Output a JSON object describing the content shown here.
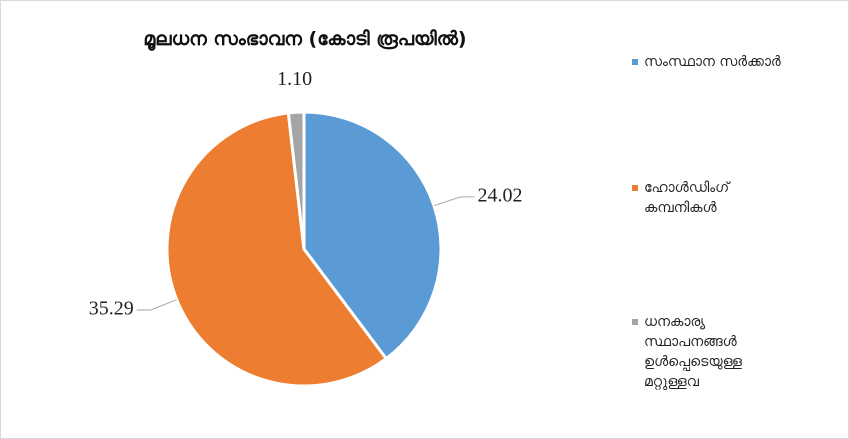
{
  "chart_data": {
    "type": "pie",
    "title": "മൂലധന സംഭാവന (കോടി രൂപയിൽ)",
    "categories": [
      "സംസ്ഥാന സർക്കാർ",
      "ഹോൾഡിംഗ് കമ്പനികൾ",
      "ധനകാര്യ സ്ഥാപനങ്ങൾ ഉൾപ്പെടെയുള്ള മറ്റുള്ളവ"
    ],
    "values": [
      24.02,
      35.29,
      1.1
    ],
    "value_labels": [
      "24.02",
      "35.29",
      "1.10"
    ],
    "colors": [
      "#5b9bd5",
      "#ed7d31",
      "#a5a5a5"
    ],
    "legend": "right"
  }
}
